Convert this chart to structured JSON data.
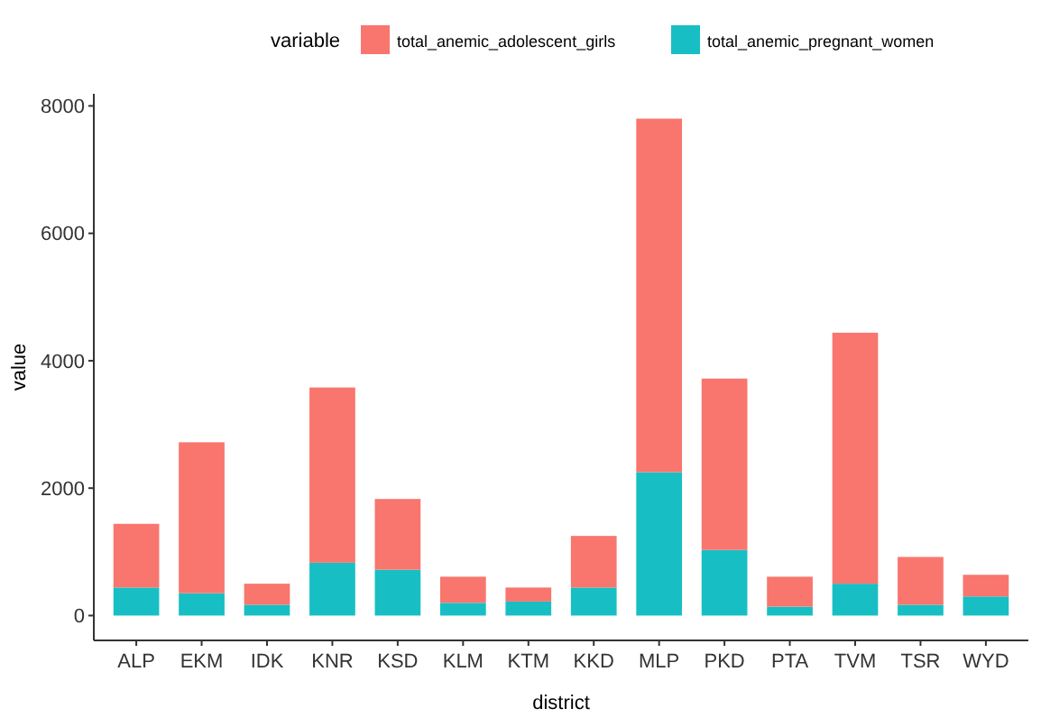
{
  "chart_data": {
    "type": "bar",
    "stacked": true,
    "xlabel": "district",
    "ylabel": "value",
    "legend_title": "variable",
    "legend": "top",
    "grid": false,
    "categories": [
      "ALP",
      "EKM",
      "IDK",
      "KNR",
      "KSD",
      "KLM",
      "KTM",
      "KKD",
      "MLP",
      "PKD",
      "PTA",
      "TVM",
      "TSR",
      "WYD"
    ],
    "series": [
      {
        "name": "total_anemic_pregnant_women",
        "color": "#17bfc4",
        "values": [
          440,
          350,
          170,
          830,
          720,
          200,
          220,
          440,
          2250,
          1030,
          140,
          500,
          170,
          300
        ]
      },
      {
        "name": "total_anemic_adolescent_girls",
        "color": "#f8766d",
        "values": [
          1000,
          2370,
          330,
          2750,
          1110,
          410,
          220,
          810,
          5550,
          2690,
          470,
          3940,
          750,
          340
        ]
      }
    ],
    "ylim": [
      -390,
      8190
    ],
    "yticks": [
      0,
      2000,
      4000,
      6000,
      8000
    ]
  }
}
